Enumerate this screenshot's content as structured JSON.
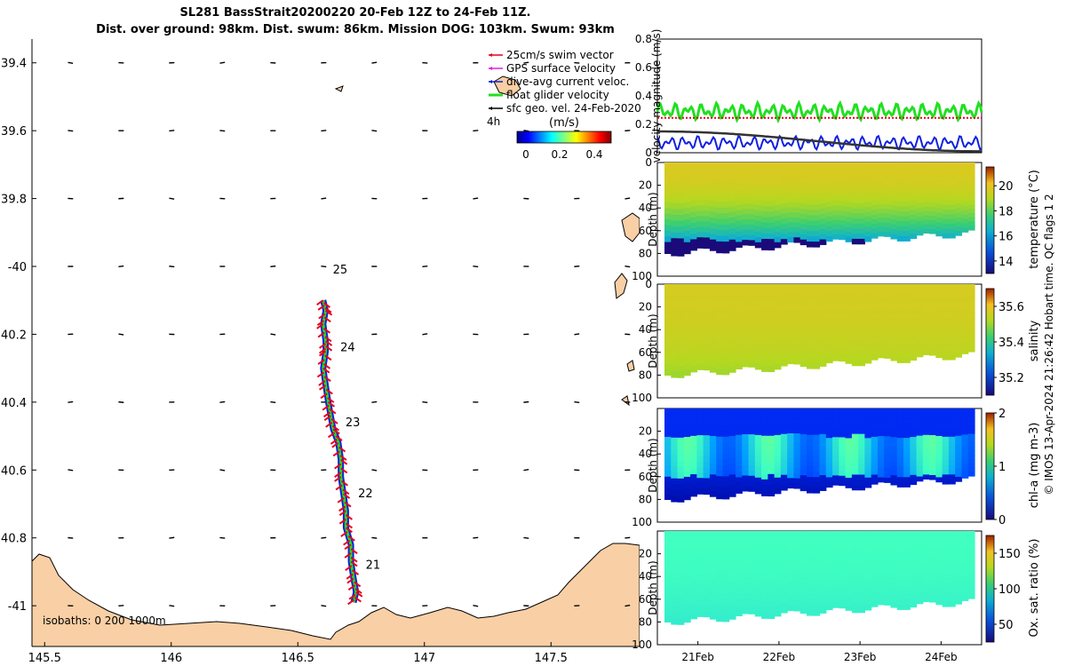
{
  "title": {
    "line1": "SL281 BassStrait20200220 20-Feb 12Z to 24-Feb 11Z.",
    "line2": "Dist. over ground: 98km. Dist. swum: 86km. Mission DOG: 103km. Swum: 93km"
  },
  "footer": "© IMOS 13-Apr-2024 21:26:42 Hobart time. QC flags 1  2",
  "colors": {
    "land": "#f9cfa5",
    "swim": "#e8001a",
    "gps": "#e020e0",
    "dive": "#1020e0",
    "glider": "#20e020",
    "geo": "#000000"
  },
  "chart_data": [
    {
      "type": "map",
      "name": "glider track map",
      "xlim": [
        145.45,
        147.85
      ],
      "ylim": [
        -41.12,
        -39.33
      ],
      "y_axis_inverted_note": "labels show latitude magnitude; south is down",
      "xticks": [
        145.5,
        146,
        146.5,
        147,
        147.5
      ],
      "xtick_labels": [
        "145.5",
        "146",
        "146.5",
        "147",
        "147.5"
      ],
      "yticks": [
        -39.4,
        -39.6,
        -39.8,
        -40.0,
        -40.2,
        -40.4,
        -40.6,
        -40.8,
        -41.0
      ],
      "ytick_labels": [
        "39.4",
        "39.6",
        "39.8",
        "-40",
        "40.2",
        "40.4",
        "40.6",
        "40.8",
        "-41"
      ],
      "legend": [
        {
          "label": "25cm/s swim vector",
          "color": "#e8001a"
        },
        {
          "label": "GPS surface velocity",
          "color": "#e020e0"
        },
        {
          "label": "dive-avg current veloc.",
          "color": "#1020e0"
        },
        {
          "label": "float glider velocity",
          "color": "#20e020"
        },
        {
          "label": "sfc geo. vel. 24-Feb-2020",
          "color": "#000000"
        }
      ],
      "legend_extra": "4h",
      "colorbar": {
        "label": "(m/s)",
        "ticks": [
          "0",
          "0.2",
          "0.4"
        ],
        "range": [
          0,
          0.5
        ]
      },
      "isobaths_label": "isobaths: 0   200  1000m",
      "track": [
        [
          146.6,
          -40.1
        ],
        [
          146.61,
          -40.13
        ],
        [
          146.6,
          -40.17
        ],
        [
          146.61,
          -40.22
        ],
        [
          146.61,
          -40.25
        ],
        [
          146.6,
          -40.3
        ],
        [
          146.61,
          -40.35
        ],
        [
          146.62,
          -40.4
        ],
        [
          146.63,
          -40.44
        ],
        [
          146.64,
          -40.48
        ],
        [
          146.66,
          -40.52
        ],
        [
          146.67,
          -40.57
        ],
        [
          146.67,
          -40.62
        ],
        [
          146.68,
          -40.67
        ],
        [
          146.69,
          -40.72
        ],
        [
          146.69,
          -40.77
        ],
        [
          146.71,
          -40.82
        ],
        [
          146.71,
          -40.87
        ],
        [
          146.72,
          -40.92
        ],
        [
          146.73,
          -40.96
        ],
        [
          146.72,
          -40.99
        ]
      ],
      "day_labels": [
        {
          "label": "25",
          "lon": 146.61,
          "lat": -40.01
        },
        {
          "label": "24",
          "lon": 146.64,
          "lat": -40.24
        },
        {
          "label": "23",
          "lon": 146.66,
          "lat": -40.46
        },
        {
          "label": "22",
          "lon": 146.71,
          "lat": -40.67
        },
        {
          "label": "21",
          "lon": 146.74,
          "lat": -40.88
        }
      ],
      "geo_vectors": {
        "lons": [
          145.6,
          145.8,
          146.0,
          146.2,
          146.4,
          146.6,
          146.8,
          147.0,
          147.2,
          147.4,
          147.6,
          147.8
        ],
        "lats": [
          -39.4,
          -39.6,
          -39.8,
          -40.0,
          -40.2,
          -40.4,
          -40.6,
          -40.8,
          -41.0
        ],
        "u_cm_s": 1.5,
        "v_cm_s": 1.0
      }
    },
    {
      "type": "line",
      "name": "velocity magnitude",
      "ylabel": "velocity magnitude (m/s)",
      "ylim": [
        0,
        0.8
      ],
      "yticks": [
        "0",
        "0.2",
        "0.4",
        "0.6",
        "0.8"
      ],
      "x_days": [
        20.5,
        24.5
      ],
      "series": [
        {
          "name": "float glider velocity",
          "color": "#20e020",
          "mean": 0.29,
          "amp": 0.06
        },
        {
          "name": "25cm/s swim vector",
          "color": "#e8001a",
          "mean": 0.245,
          "amp": 0.0
        },
        {
          "name": "dive-avg current veloc.",
          "color": "#1020e0",
          "mean": 0.07,
          "amp": 0.05
        },
        {
          "name": "sfc geo. vel.",
          "color": "#333333",
          "start": 0.15,
          "end": 0.01
        }
      ]
    },
    {
      "type": "heatmap",
      "name": "temperature section",
      "ylabel": "Depth (m)",
      "yticks": [
        "0",
        "20",
        "40",
        "60",
        "80",
        "100"
      ],
      "ylim": [
        0,
        100
      ],
      "colorbar_label": "temperature (°C)",
      "colorbar_ticks": [
        "14",
        "16",
        "18",
        "20"
      ],
      "crange": [
        13,
        21.5
      ],
      "surface_value": 19.5,
      "bottom_value": 14.0,
      "bottom_depth": 80
    },
    {
      "type": "heatmap",
      "name": "salinity section",
      "ylabel": "Depth (m)",
      "yticks": [
        "0",
        "20",
        "40",
        "60",
        "80",
        "100"
      ],
      "ylim": [
        0,
        100
      ],
      "colorbar_label": "salinity",
      "colorbar_ticks": [
        "35.2",
        "35.4",
        "35.6"
      ],
      "crange": [
        35.1,
        35.7
      ],
      "surface_value": 35.55,
      "bottom_value": 35.48,
      "bottom_depth": 80
    },
    {
      "type": "heatmap",
      "name": "chlorophyll section",
      "ylabel": "Depth (m)",
      "yticks": [
        "20",
        "40",
        "60",
        "80",
        "100"
      ],
      "ylim": [
        0,
        100
      ],
      "colorbar_label": "chl-a (mg m-3)",
      "colorbar_ticks": [
        "0",
        "1",
        "2"
      ],
      "crange": [
        0,
        2
      ],
      "surface_value": 0.3,
      "bottom_value": 0.1,
      "bottom_depth": 80
    },
    {
      "type": "heatmap",
      "name": "oxygen saturation section",
      "ylabel": "Depth (m)",
      "yticks": [
        "20",
        "40",
        "60",
        "80",
        "100"
      ],
      "ylim": [
        0,
        100
      ],
      "colorbar_label": "Ox. sat. ratio (%)",
      "colorbar_ticks": [
        "50",
        "100",
        "150"
      ],
      "crange": [
        25,
        175
      ],
      "surface_value": 100,
      "bottom_value": 95,
      "bottom_depth": 80
    }
  ],
  "time_axis": {
    "ticks": [
      21,
      22,
      23,
      24
    ],
    "labels": [
      "21Feb",
      "22Feb",
      "23Feb",
      "24Feb"
    ],
    "xlim": [
      20.5,
      24.5
    ]
  }
}
